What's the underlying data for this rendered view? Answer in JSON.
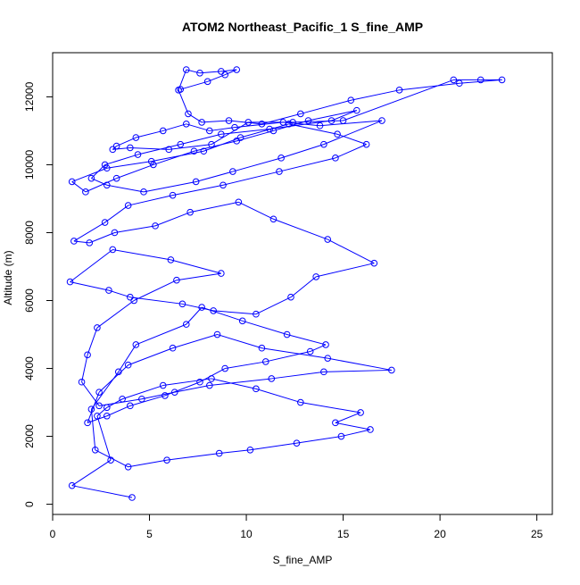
{
  "chart_data": {
    "type": "line",
    "title": "ATOM2 Northeast_Pacific_1 S_fine_AMP",
    "xlabel": "S_fine_AMP",
    "ylabel": "Altitude (m)",
    "xlim": [
      0,
      25.8
    ],
    "ylim": [
      -300,
      13300
    ],
    "xticks": [
      0,
      5,
      10,
      15,
      20,
      25
    ],
    "yticks": [
      0,
      2000,
      4000,
      6000,
      8000,
      10000,
      12000
    ],
    "grid": false,
    "marker": "open-circle",
    "series": [
      {
        "color": "#0000ff",
        "x": [
          4.1,
          1.0,
          3.0,
          2.3,
          2.8,
          3.6,
          5.7,
          8.2,
          10.5,
          12.8,
          15.9,
          14.6,
          16.4,
          14.9,
          12.6,
          10.2,
          8.6,
          5.9,
          3.9,
          2.2,
          2.0,
          3.4,
          4.3,
          6.9,
          7.7,
          9.8,
          12.1,
          14.1,
          13.3,
          11.0,
          8.9,
          7.6,
          5.8,
          4.0,
          2.8,
          1.8,
          2.4,
          3.9,
          6.2,
          8.5,
          10.8,
          14.2,
          17.5,
          14.0,
          11.3,
          8.1,
          6.3,
          4.6,
          2.4,
          1.5,
          1.8,
          2.3,
          4.2,
          6.4,
          8.7,
          6.1,
          3.1,
          0.9,
          2.9,
          4.0,
          6.7,
          8.3,
          10.5,
          12.3,
          13.6,
          16.6,
          14.2,
          11.4,
          9.6,
          7.1,
          5.3,
          3.2,
          1.9,
          1.1,
          2.7,
          3.9,
          6.2,
          8.8,
          11.7,
          14.6,
          16.2,
          14.7,
          12.2,
          9.7,
          7.8,
          5.1,
          2.8,
          1.0,
          1.7,
          3.3,
          5.2,
          7.3,
          9.5,
          11.4,
          13.2,
          15.7,
          14.4,
          11.2,
          8.7,
          6.6,
          4.4,
          2.7,
          2.0,
          2.8,
          4.7,
          7.4,
          9.3,
          11.8,
          14.0,
          17.0,
          13.8,
          11.9,
          9.4,
          8.1,
          6.9,
          5.7,
          4.3,
          3.3,
          3.1,
          4.0,
          6.0,
          8.2,
          10.1,
          12.4,
          15.0,
          20.7,
          22.1,
          23.2,
          21.0,
          17.9,
          15.4,
          12.8,
          10.8,
          9.1,
          7.7,
          7.0,
          6.5,
          6.9,
          7.6,
          8.7,
          9.5,
          8.9,
          8.0,
          6.6
        ],
        "y": [
          200,
          550,
          1300,
          2600,
          2850,
          3100,
          3500,
          3700,
          3400,
          3000,
          2700,
          2400,
          2200,
          2000,
          1800,
          1600,
          1500,
          1300,
          1100,
          1600,
          2800,
          3900,
          4700,
          5300,
          5800,
          5400,
          5000,
          4700,
          4500,
          4200,
          4000,
          3600,
          3200,
          2900,
          2600,
          2400,
          3300,
          4100,
          4600,
          5000,
          4600,
          4300,
          3950,
          3900,
          3700,
          3500,
          3300,
          3100,
          2900,
          3600,
          4400,
          5200,
          6000,
          6600,
          6800,
          7200,
          7500,
          6550,
          6300,
          6100,
          5900,
          5700,
          5600,
          6100,
          6700,
          7100,
          7800,
          8400,
          8900,
          8600,
          8200,
          8000,
          7700,
          7750,
          8300,
          8800,
          9100,
          9400,
          9800,
          10200,
          10600,
          10900,
          11200,
          10800,
          10400,
          10100,
          9900,
          9500,
          9200,
          9600,
          10000,
          10400,
          10700,
          11000,
          11300,
          11600,
          11300,
          11050,
          10900,
          10600,
          10300,
          10000,
          9600,
          9400,
          9200,
          9500,
          9800,
          10200,
          10600,
          11300,
          11150,
          11250,
          11100,
          11000,
          11200,
          11000,
          10800,
          10550,
          10450,
          10500,
          10450,
          10600,
          11250,
          11250,
          11300,
          12500,
          12500,
          12500,
          12400,
          12200,
          11900,
          11500,
          11200,
          11300,
          11250,
          11500,
          12200,
          12800,
          12700,
          12750,
          12800,
          12650,
          12450,
          12220
        ]
      }
    ]
  }
}
